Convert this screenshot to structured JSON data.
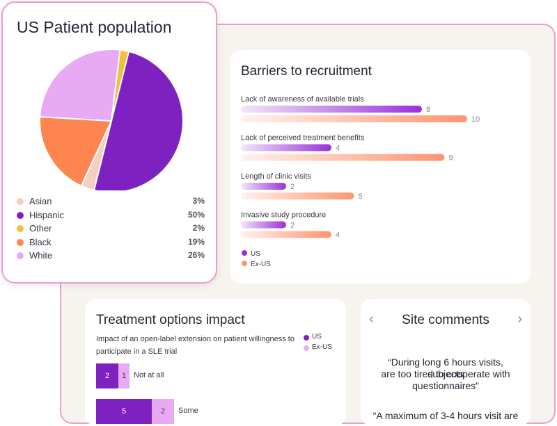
{
  "pie_card": {
    "title": "US Patient population"
  },
  "barriers": {
    "title": "Barriers to recruitment"
  },
  "treatment": {
    "title": "Treatment options impact",
    "subtitle_line1": "Impact of an open-label extension on patient willingness to",
    "subtitle_line2": "participate in a SLE trial"
  },
  "site_comments": {
    "title": "Site comments",
    "prev_icon": "chevron-left-icon",
    "next_icon": "chevron-right-icon",
    "quote1_line1": "“During long 6 hours visits, subjects",
    "quote1_line2": "are too tired to cooperate with",
    "quote1_line3": "questionnaires”",
    "quote2_line1": "“A maximum of 3-4 hours visit are"
  },
  "chart_data": [
    {
      "type": "pie",
      "title": "US Patient population",
      "slices": [
        {
          "label": "Asian",
          "value": 3,
          "display": "3%",
          "color": "#f6cfc0"
        },
        {
          "label": "Hispanic",
          "value": 50,
          "display": "50%",
          "color": "#7d22c0"
        },
        {
          "label": "Other",
          "value": 2,
          "display": "2%",
          "color": "#f5bf3a"
        },
        {
          "label": "Black",
          "value": 19,
          "display": "19%",
          "color": "#ff8550"
        },
        {
          "label": "White",
          "value": 26,
          "display": "26%",
          "color": "#e8aaf4"
        }
      ]
    },
    {
      "type": "bar",
      "title": "Barriers to recruitment",
      "categories": [
        "Lack of awareness of available trials",
        "Lack of perceived treatment benefits",
        "Length of clinic visits",
        "Invasive study procedure"
      ],
      "series": [
        {
          "name": "US",
          "values": [
            8,
            4,
            2,
            2
          ],
          "color": "#9b30d9"
        },
        {
          "name": "Ex-US",
          "values": [
            10,
            9,
            5,
            4
          ],
          "color": "#ff9470"
        }
      ],
      "xlim": [
        0,
        10
      ]
    },
    {
      "type": "bar",
      "title": "Treatment options impact",
      "categories": [
        "Not at all",
        "Some"
      ],
      "series": [
        {
          "name": "US",
          "values": [
            2,
            5
          ],
          "color": "#7d22c0"
        },
        {
          "name": "Ex-US",
          "values": [
            1,
            2
          ],
          "color": "#e8aaf4"
        }
      ]
    }
  ]
}
